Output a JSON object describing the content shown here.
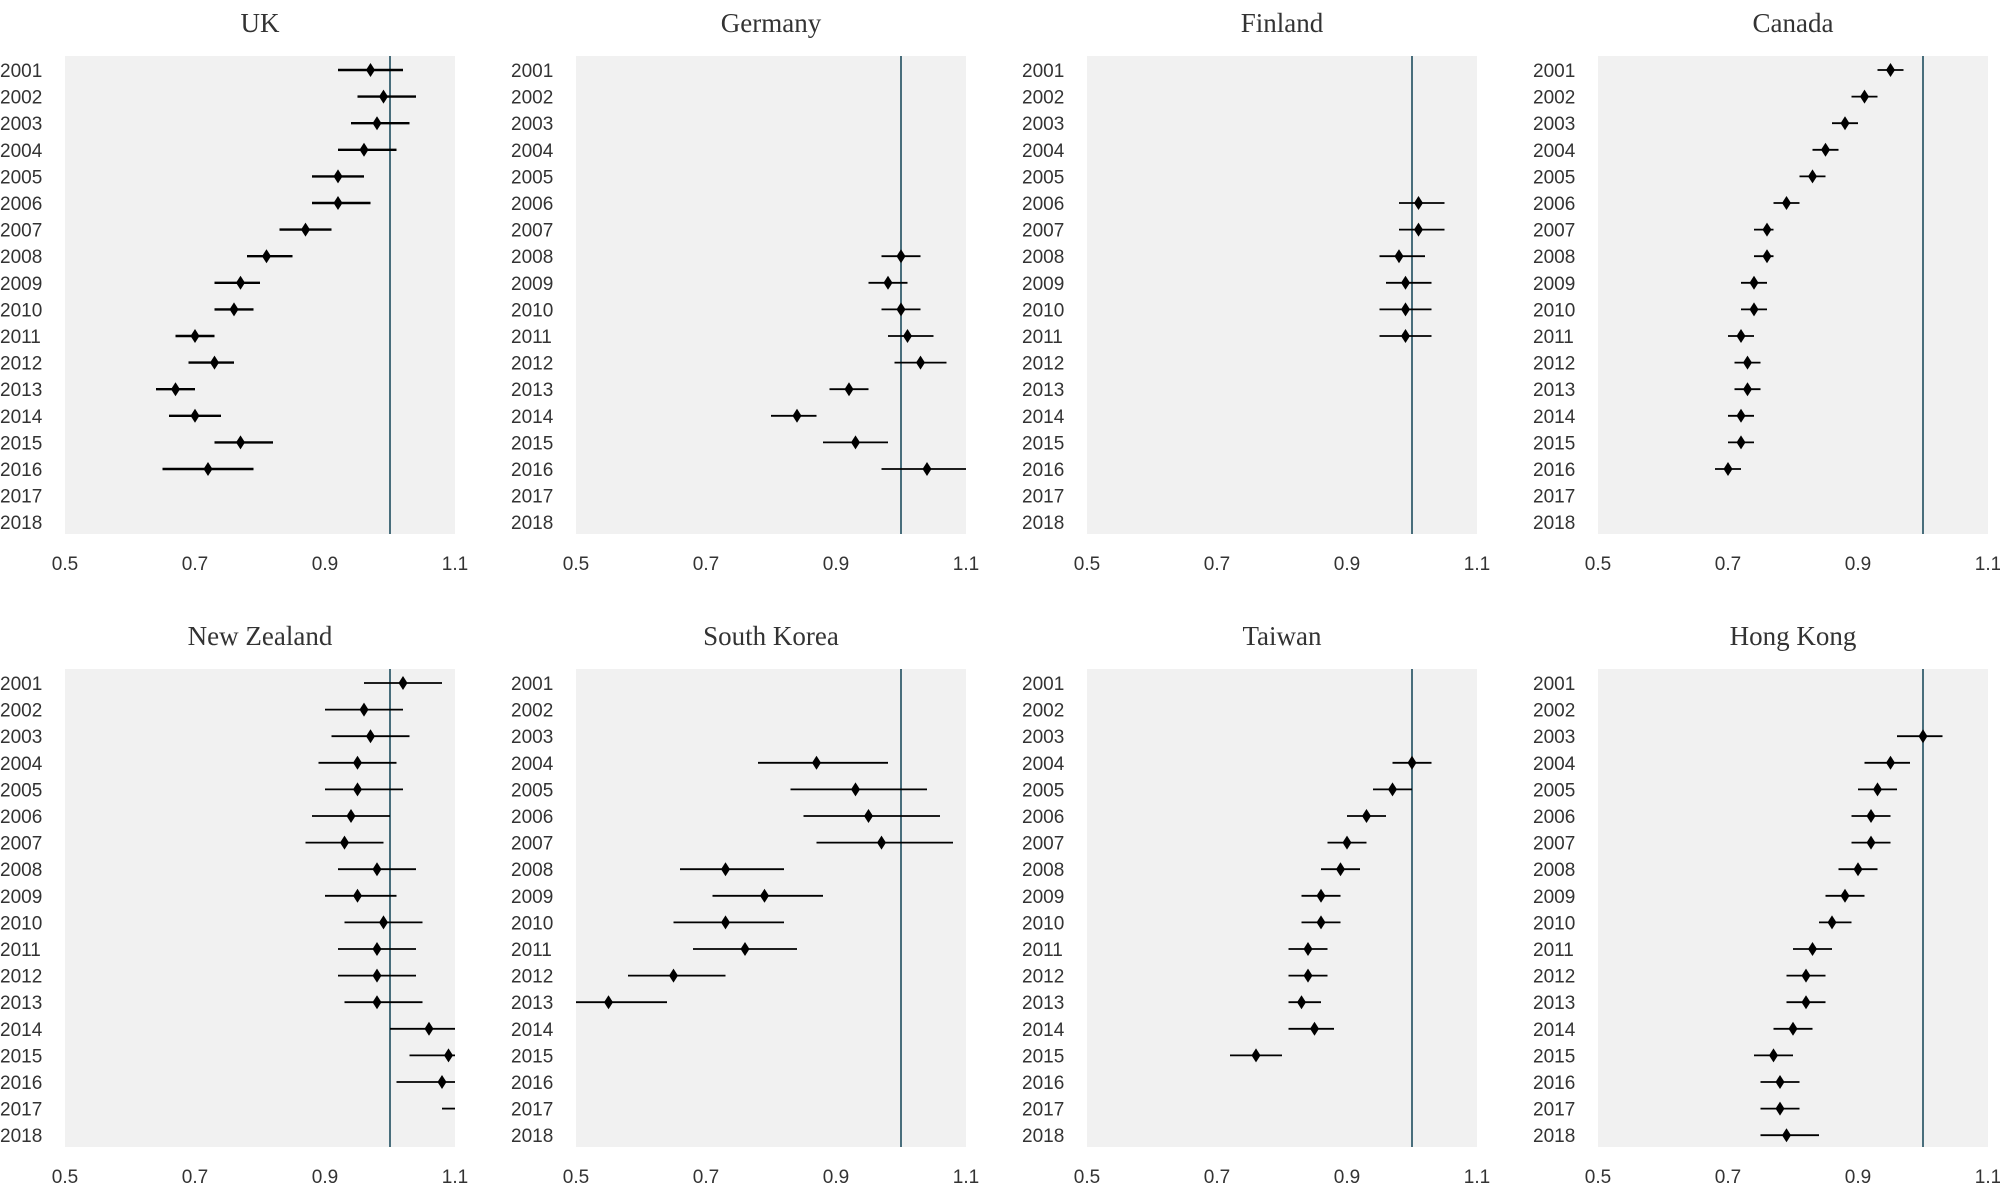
{
  "chart_data": [
    {
      "type": "scatter",
      "title": "UK",
      "xticks": [
        0.5,
        0.7,
        0.9,
        1.1
      ],
      "tick_labels": [
        "0.5",
        "0.7",
        "0.9",
        "1.1"
      ],
      "xlim": [
        0.5,
        1.1
      ],
      "years": [
        "2001",
        "2002",
        "2003",
        "2004",
        "2005",
        "2006",
        "2007",
        "2008",
        "2009",
        "2010",
        "2011",
        "2012",
        "2013",
        "2014",
        "2015",
        "2016",
        "2017",
        "2018"
      ],
      "reference_x": 1.0,
      "points": [
        {
          "year": "2001",
          "est": 0.97,
          "lo": 0.92,
          "hi": 1.02
        },
        {
          "year": "2002",
          "est": 0.99,
          "lo": 0.95,
          "hi": 1.04
        },
        {
          "year": "2003",
          "est": 0.98,
          "lo": 0.94,
          "hi": 1.03
        },
        {
          "year": "2004",
          "est": 0.96,
          "lo": 0.92,
          "hi": 1.01
        },
        {
          "year": "2005",
          "est": 0.92,
          "lo": 0.88,
          "hi": 0.96
        },
        {
          "year": "2006",
          "est": 0.92,
          "lo": 0.88,
          "hi": 0.97
        },
        {
          "year": "2007",
          "est": 0.87,
          "lo": 0.83,
          "hi": 0.91
        },
        {
          "year": "2008",
          "est": 0.81,
          "lo": 0.78,
          "hi": 0.85
        },
        {
          "year": "2009",
          "est": 0.77,
          "lo": 0.73,
          "hi": 0.8
        },
        {
          "year": "2010",
          "est": 0.76,
          "lo": 0.73,
          "hi": 0.79
        },
        {
          "year": "2011",
          "est": 0.7,
          "lo": 0.67,
          "hi": 0.73
        },
        {
          "year": "2012",
          "est": 0.73,
          "lo": 0.69,
          "hi": 0.76
        },
        {
          "year": "2013",
          "est": 0.67,
          "lo": 0.64,
          "hi": 0.7
        },
        {
          "year": "2014",
          "est": 0.7,
          "lo": 0.66,
          "hi": 0.74
        },
        {
          "year": "2015",
          "est": 0.77,
          "lo": 0.73,
          "hi": 0.82
        },
        {
          "year": "2016",
          "est": 0.72,
          "lo": 0.65,
          "hi": 0.79
        }
      ]
    },
    {
      "type": "scatter",
      "title": "Germany",
      "xticks": [
        0.5,
        0.7,
        0.9,
        1.1
      ],
      "tick_labels": [
        "0.5",
        "0.7",
        "0.9",
        "1.1"
      ],
      "xlim": [
        0.5,
        1.1
      ],
      "years": [
        "2001",
        "2002",
        "2003",
        "2004",
        "2005",
        "2006",
        "2007",
        "2008",
        "2009",
        "2010",
        "2011",
        "2012",
        "2013",
        "2014",
        "2015",
        "2016",
        "2017",
        "2018"
      ],
      "reference_x": 1.0,
      "points": [
        {
          "year": "2008",
          "est": 1.0,
          "lo": 0.97,
          "hi": 1.03
        },
        {
          "year": "2009",
          "est": 0.98,
          "lo": 0.95,
          "hi": 1.01
        },
        {
          "year": "2010",
          "est": 1.0,
          "lo": 0.97,
          "hi": 1.03
        },
        {
          "year": "2011",
          "est": 1.01,
          "lo": 0.98,
          "hi": 1.05
        },
        {
          "year": "2012",
          "est": 1.03,
          "lo": 0.99,
          "hi": 1.07
        },
        {
          "year": "2013",
          "est": 0.92,
          "lo": 0.89,
          "hi": 0.95
        },
        {
          "year": "2014",
          "est": 0.84,
          "lo": 0.8,
          "hi": 0.87
        },
        {
          "year": "2015",
          "est": 0.93,
          "lo": 0.88,
          "hi": 0.98
        },
        {
          "year": "2016",
          "est": 1.04,
          "lo": 0.97,
          "hi": 1.1
        }
      ]
    },
    {
      "type": "scatter",
      "title": "Finland",
      "xticks": [
        0.5,
        0.7,
        0.9,
        1.1
      ],
      "tick_labels": [
        "0.5",
        "0.7",
        "0.9",
        "1.1"
      ],
      "xlim": [
        0.5,
        1.1
      ],
      "years": [
        "2001",
        "2002",
        "2003",
        "2004",
        "2005",
        "2006",
        "2007",
        "2008",
        "2009",
        "2010",
        "2011",
        "2012",
        "2013",
        "2014",
        "2015",
        "2016",
        "2017",
        "2018"
      ],
      "reference_x": 1.0,
      "points": [
        {
          "year": "2006",
          "est": 1.01,
          "lo": 0.98,
          "hi": 1.05
        },
        {
          "year": "2007",
          "est": 1.01,
          "lo": 0.98,
          "hi": 1.05
        },
        {
          "year": "2008",
          "est": 0.98,
          "lo": 0.95,
          "hi": 1.02
        },
        {
          "year": "2009",
          "est": 0.99,
          "lo": 0.96,
          "hi": 1.03
        },
        {
          "year": "2010",
          "est": 0.99,
          "lo": 0.95,
          "hi": 1.03
        },
        {
          "year": "2011",
          "est": 0.99,
          "lo": 0.95,
          "hi": 1.03
        }
      ]
    },
    {
      "type": "scatter",
      "title": "Canada",
      "xticks": [
        0.5,
        0.7,
        0.9,
        1.1
      ],
      "tick_labels": [
        "0.5",
        "0.7",
        "0.9",
        "1.1"
      ],
      "xlim": [
        0.5,
        1.1
      ],
      "years": [
        "2001",
        "2002",
        "2003",
        "2004",
        "2005",
        "2006",
        "2007",
        "2008",
        "2009",
        "2010",
        "2011",
        "2012",
        "2013",
        "2014",
        "2015",
        "2016",
        "2017",
        "2018"
      ],
      "reference_x": 1.0,
      "points": [
        {
          "year": "2001",
          "est": 0.95,
          "lo": 0.93,
          "hi": 0.97
        },
        {
          "year": "2002",
          "est": 0.91,
          "lo": 0.89,
          "hi": 0.93
        },
        {
          "year": "2003",
          "est": 0.88,
          "lo": 0.86,
          "hi": 0.9
        },
        {
          "year": "2004",
          "est": 0.85,
          "lo": 0.83,
          "hi": 0.87
        },
        {
          "year": "2005",
          "est": 0.83,
          "lo": 0.81,
          "hi": 0.85
        },
        {
          "year": "2006",
          "est": 0.79,
          "lo": 0.77,
          "hi": 0.81
        },
        {
          "year": "2007",
          "est": 0.76,
          "lo": 0.74,
          "hi": 0.77
        },
        {
          "year": "2008",
          "est": 0.76,
          "lo": 0.74,
          "hi": 0.77
        },
        {
          "year": "2009",
          "est": 0.74,
          "lo": 0.72,
          "hi": 0.76
        },
        {
          "year": "2010",
          "est": 0.74,
          "lo": 0.72,
          "hi": 0.76
        },
        {
          "year": "2011",
          "est": 0.72,
          "lo": 0.7,
          "hi": 0.74
        },
        {
          "year": "2012",
          "est": 0.73,
          "lo": 0.71,
          "hi": 0.75
        },
        {
          "year": "2013",
          "est": 0.73,
          "lo": 0.71,
          "hi": 0.75
        },
        {
          "year": "2014",
          "est": 0.72,
          "lo": 0.7,
          "hi": 0.74
        },
        {
          "year": "2015",
          "est": 0.72,
          "lo": 0.7,
          "hi": 0.74
        },
        {
          "year": "2016",
          "est": 0.7,
          "lo": 0.68,
          "hi": 0.72
        }
      ]
    },
    {
      "type": "scatter",
      "title": "New Zealand",
      "xticks": [
        0.5,
        0.7,
        0.9,
        1.1
      ],
      "tick_labels": [
        "0.5",
        "0.7",
        "0.9",
        "1.1"
      ],
      "xlim": [
        0.5,
        1.1
      ],
      "years": [
        "2001",
        "2002",
        "2003",
        "2004",
        "2005",
        "2006",
        "2007",
        "2008",
        "2009",
        "2010",
        "2011",
        "2012",
        "2013",
        "2014",
        "2015",
        "2016",
        "2017",
        "2018"
      ],
      "reference_x": 1.0,
      "points": [
        {
          "year": "2001",
          "est": 1.02,
          "lo": 0.96,
          "hi": 1.08
        },
        {
          "year": "2002",
          "est": 0.96,
          "lo": 0.9,
          "hi": 1.02
        },
        {
          "year": "2003",
          "est": 0.97,
          "lo": 0.91,
          "hi": 1.03
        },
        {
          "year": "2004",
          "est": 0.95,
          "lo": 0.89,
          "hi": 1.01
        },
        {
          "year": "2005",
          "est": 0.95,
          "lo": 0.9,
          "hi": 1.02
        },
        {
          "year": "2006",
          "est": 0.94,
          "lo": 0.88,
          "hi": 1.0
        },
        {
          "year": "2007",
          "est": 0.93,
          "lo": 0.87,
          "hi": 0.99
        },
        {
          "year": "2008",
          "est": 0.98,
          "lo": 0.92,
          "hi": 1.04
        },
        {
          "year": "2009",
          "est": 0.95,
          "lo": 0.9,
          "hi": 1.01
        },
        {
          "year": "2010",
          "est": 0.99,
          "lo": 0.93,
          "hi": 1.05
        },
        {
          "year": "2011",
          "est": 0.98,
          "lo": 0.92,
          "hi": 1.04
        },
        {
          "year": "2012",
          "est": 0.98,
          "lo": 0.92,
          "hi": 1.04
        },
        {
          "year": "2013",
          "est": 0.98,
          "lo": 0.93,
          "hi": 1.05
        },
        {
          "year": "2014",
          "est": 1.06,
          "lo": 1.0,
          "hi": 1.1
        },
        {
          "year": "2015",
          "est": 1.09,
          "lo": 1.03,
          "hi": 1.1
        },
        {
          "year": "2016",
          "est": 1.08,
          "lo": 1.01,
          "hi": 1.1
        },
        {
          "year": "2017",
          "est": null,
          "lo": 1.08,
          "hi": 1.1
        }
      ]
    },
    {
      "type": "scatter",
      "title": "South Korea",
      "xticks": [
        0.5,
        0.7,
        0.9,
        1.1
      ],
      "tick_labels": [
        "0.5",
        "0.7",
        "0.9",
        "1.1"
      ],
      "xlim": [
        0.5,
        1.1
      ],
      "years": [
        "2001",
        "2002",
        "2003",
        "2004",
        "2005",
        "2006",
        "2007",
        "2008",
        "2009",
        "2010",
        "2011",
        "2012",
        "2013",
        "2014",
        "2015",
        "2016",
        "2017",
        "2018"
      ],
      "reference_x": 1.0,
      "points": [
        {
          "year": "2004",
          "est": 0.87,
          "lo": 0.78,
          "hi": 0.98
        },
        {
          "year": "2005",
          "est": 0.93,
          "lo": 0.83,
          "hi": 1.04
        },
        {
          "year": "2006",
          "est": 0.95,
          "lo": 0.85,
          "hi": 1.06
        },
        {
          "year": "2007",
          "est": 0.97,
          "lo": 0.87,
          "hi": 1.08
        },
        {
          "year": "2008",
          "est": 0.73,
          "lo": 0.66,
          "hi": 0.82
        },
        {
          "year": "2009",
          "est": 0.79,
          "lo": 0.71,
          "hi": 0.88
        },
        {
          "year": "2010",
          "est": 0.73,
          "lo": 0.65,
          "hi": 0.82
        },
        {
          "year": "2011",
          "est": 0.76,
          "lo": 0.68,
          "hi": 0.84
        },
        {
          "year": "2012",
          "est": 0.65,
          "lo": 0.58,
          "hi": 0.73
        },
        {
          "year": "2013",
          "est": 0.55,
          "lo": 0.5,
          "hi": 0.64
        }
      ]
    },
    {
      "type": "scatter",
      "title": "Taiwan",
      "xticks": [
        0.5,
        0.7,
        0.9,
        1.1
      ],
      "tick_labels": [
        "0.5",
        "0.7",
        "0.9",
        "1.1"
      ],
      "xlim": [
        0.5,
        1.1
      ],
      "years": [
        "2001",
        "2002",
        "2003",
        "2004",
        "2005",
        "2006",
        "2007",
        "2008",
        "2009",
        "2010",
        "2011",
        "2012",
        "2013",
        "2014",
        "2015",
        "2016",
        "2017",
        "2018"
      ],
      "reference_x": 1.0,
      "points": [
        {
          "year": "2004",
          "est": 1.0,
          "lo": 0.97,
          "hi": 1.03
        },
        {
          "year": "2005",
          "est": 0.97,
          "lo": 0.94,
          "hi": 1.0
        },
        {
          "year": "2006",
          "est": 0.93,
          "lo": 0.9,
          "hi": 0.96
        },
        {
          "year": "2007",
          "est": 0.9,
          "lo": 0.87,
          "hi": 0.93
        },
        {
          "year": "2008",
          "est": 0.89,
          "lo": 0.86,
          "hi": 0.92
        },
        {
          "year": "2009",
          "est": 0.86,
          "lo": 0.83,
          "hi": 0.89
        },
        {
          "year": "2010",
          "est": 0.86,
          "lo": 0.83,
          "hi": 0.89
        },
        {
          "year": "2011",
          "est": 0.84,
          "lo": 0.81,
          "hi": 0.87
        },
        {
          "year": "2012",
          "est": 0.84,
          "lo": 0.81,
          "hi": 0.87
        },
        {
          "year": "2013",
          "est": 0.83,
          "lo": 0.81,
          "hi": 0.86
        },
        {
          "year": "2014",
          "est": 0.85,
          "lo": 0.81,
          "hi": 0.88
        },
        {
          "year": "2015",
          "est": 0.76,
          "lo": 0.72,
          "hi": 0.8
        }
      ]
    },
    {
      "type": "scatter",
      "title": "Hong Kong",
      "xticks": [
        0.5,
        0.7,
        0.9,
        1.1
      ],
      "tick_labels": [
        "0.5",
        "0.7",
        "0.9",
        "1.1"
      ],
      "xlim": [
        0.5,
        1.1
      ],
      "years": [
        "2001",
        "2002",
        "2003",
        "2004",
        "2005",
        "2006",
        "2007",
        "2008",
        "2009",
        "2010",
        "2011",
        "2012",
        "2013",
        "2014",
        "2015",
        "2016",
        "2017",
        "2018"
      ],
      "reference_x": 1.0,
      "points": [
        {
          "year": "2003",
          "est": 1.0,
          "lo": 0.96,
          "hi": 1.03
        },
        {
          "year": "2004",
          "est": 0.95,
          "lo": 0.91,
          "hi": 0.98
        },
        {
          "year": "2005",
          "est": 0.93,
          "lo": 0.9,
          "hi": 0.96
        },
        {
          "year": "2006",
          "est": 0.92,
          "lo": 0.89,
          "hi": 0.95
        },
        {
          "year": "2007",
          "est": 0.92,
          "lo": 0.89,
          "hi": 0.95
        },
        {
          "year": "2008",
          "est": 0.9,
          "lo": 0.87,
          "hi": 0.93
        },
        {
          "year": "2009",
          "est": 0.88,
          "lo": 0.85,
          "hi": 0.91
        },
        {
          "year": "2010",
          "est": 0.86,
          "lo": 0.84,
          "hi": 0.89
        },
        {
          "year": "2011",
          "est": 0.83,
          "lo": 0.8,
          "hi": 0.86
        },
        {
          "year": "2012",
          "est": 0.82,
          "lo": 0.79,
          "hi": 0.85
        },
        {
          "year": "2013",
          "est": 0.82,
          "lo": 0.79,
          "hi": 0.85
        },
        {
          "year": "2014",
          "est": 0.8,
          "lo": 0.77,
          "hi": 0.83
        },
        {
          "year": "2015",
          "est": 0.77,
          "lo": 0.74,
          "hi": 0.8
        },
        {
          "year": "2016",
          "est": 0.78,
          "lo": 0.75,
          "hi": 0.81
        },
        {
          "year": "2017",
          "est": 0.78,
          "lo": 0.75,
          "hi": 0.81
        },
        {
          "year": "2018",
          "est": 0.79,
          "lo": 0.75,
          "hi": 0.84
        }
      ]
    }
  ],
  "colors": {
    "plot_background": "#f1f1f1",
    "reference_line": "#1f4e5f",
    "marker": "#000000",
    "text": "#333333"
  }
}
